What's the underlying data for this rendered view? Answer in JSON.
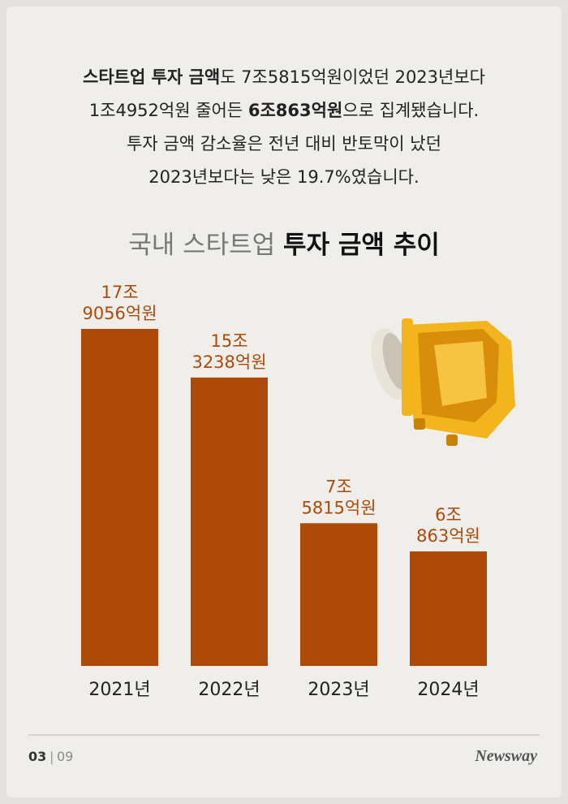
{
  "intro": [
    [
      {
        "text": "스타트업 투자 금액",
        "bold": true
      },
      {
        "text": "도 7조5815억원이었던 2023년보다",
        "bold": false
      }
    ],
    [
      {
        "text": "1조4952억원 줄어든 ",
        "bold": false
      },
      {
        "text": "6조863억원",
        "bold": true
      },
      {
        "text": "으로 집계됐습니다.",
        "bold": false
      }
    ],
    [
      {
        "text": "투자 금액 감소율은 전년 대비 반토막이 났던",
        "bold": false
      }
    ],
    [
      {
        "text": "2023년보다는 낮은 19.7%였습니다.",
        "bold": false
      }
    ]
  ],
  "chart_data": {
    "type": "bar",
    "title": [
      {
        "text": "국내 스타트업 ",
        "bold": false
      },
      {
        "text": "투자 금액 추이",
        "bold": true
      }
    ],
    "categories": [
      "2021년",
      "2022년",
      "2023년",
      "2024년"
    ],
    "values": [
      179056,
      153238,
      75815,
      60863
    ],
    "value_labels": [
      [
        "17조",
        "9056억원"
      ],
      [
        "15조",
        "3238억원"
      ],
      [
        "7조",
        "5815억원"
      ],
      [
        "6조",
        "863억원"
      ]
    ],
    "color": "#ae4a08"
  },
  "footer": {
    "page": "03",
    "total": "09",
    "brand": "Newsway"
  }
}
